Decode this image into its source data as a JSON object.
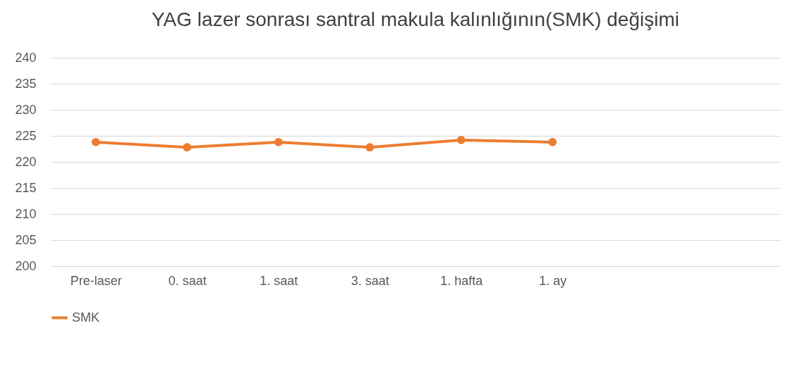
{
  "chart_data": {
    "type": "line",
    "title": "YAG lazer sonrası santral makula kalınlığının(SMK) değişimi",
    "categories": [
      "Pre-laser",
      "0. saat",
      "1. saat",
      "3. saat",
      "1. hafta",
      "1. ay",
      null,
      null
    ],
    "series": [
      {
        "name": "SMK",
        "color": "#ed7d31",
        "values": [
          223.8,
          222.8,
          223.8,
          222.8,
          224.2,
          223.8,
          null,
          null
        ]
      }
    ],
    "ylim": [
      200,
      240
    ],
    "yticks": [
      200,
      205,
      210,
      215,
      220,
      225,
      230,
      235,
      240
    ],
    "grid": "y",
    "legend": "bottom",
    "marker": "circle",
    "line_style": "solid"
  }
}
